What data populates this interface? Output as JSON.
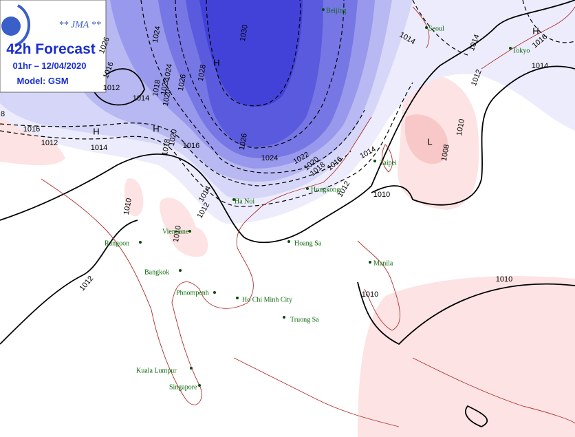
{
  "header": {
    "agency": "** JMA **",
    "title": "42h Forecast",
    "time": "01hr – 12/04/2020",
    "model": "Model: GSM"
  },
  "cities": [
    "Beijing",
    "Seoul",
    "Tokyo",
    "Taipei",
    "Hongkong",
    "Ha Noi",
    "Vientiane",
    "Rangoon",
    "Bangkok",
    "Phnompenh",
    "Ho Chi Minh City",
    "Hoang Sa",
    "Truong Sa",
    "Manila",
    "Kuala Lumpur",
    "Singapore"
  ],
  "pressure_centers": [
    "H",
    "H",
    "H",
    "H",
    "L"
  ],
  "isobar_labels": [
    "1026",
    "1024",
    "1030",
    "1028",
    "1026",
    "1024",
    "1022",
    "1020",
    "1018",
    "1016",
    "1012",
    "1014",
    "1026",
    "1024",
    "1022",
    "1020",
    "1018",
    "1016",
    "1014",
    "1012",
    "1010",
    "1020",
    "1018",
    "1016",
    "1016",
    "1012",
    "1014",
    "1010",
    "1014",
    "1012",
    "1010",
    "1012",
    "1010",
    "1010",
    "1008",
    "1010",
    "1012",
    "1014",
    "1014",
    "1016",
    "1014",
    "8"
  ]
}
